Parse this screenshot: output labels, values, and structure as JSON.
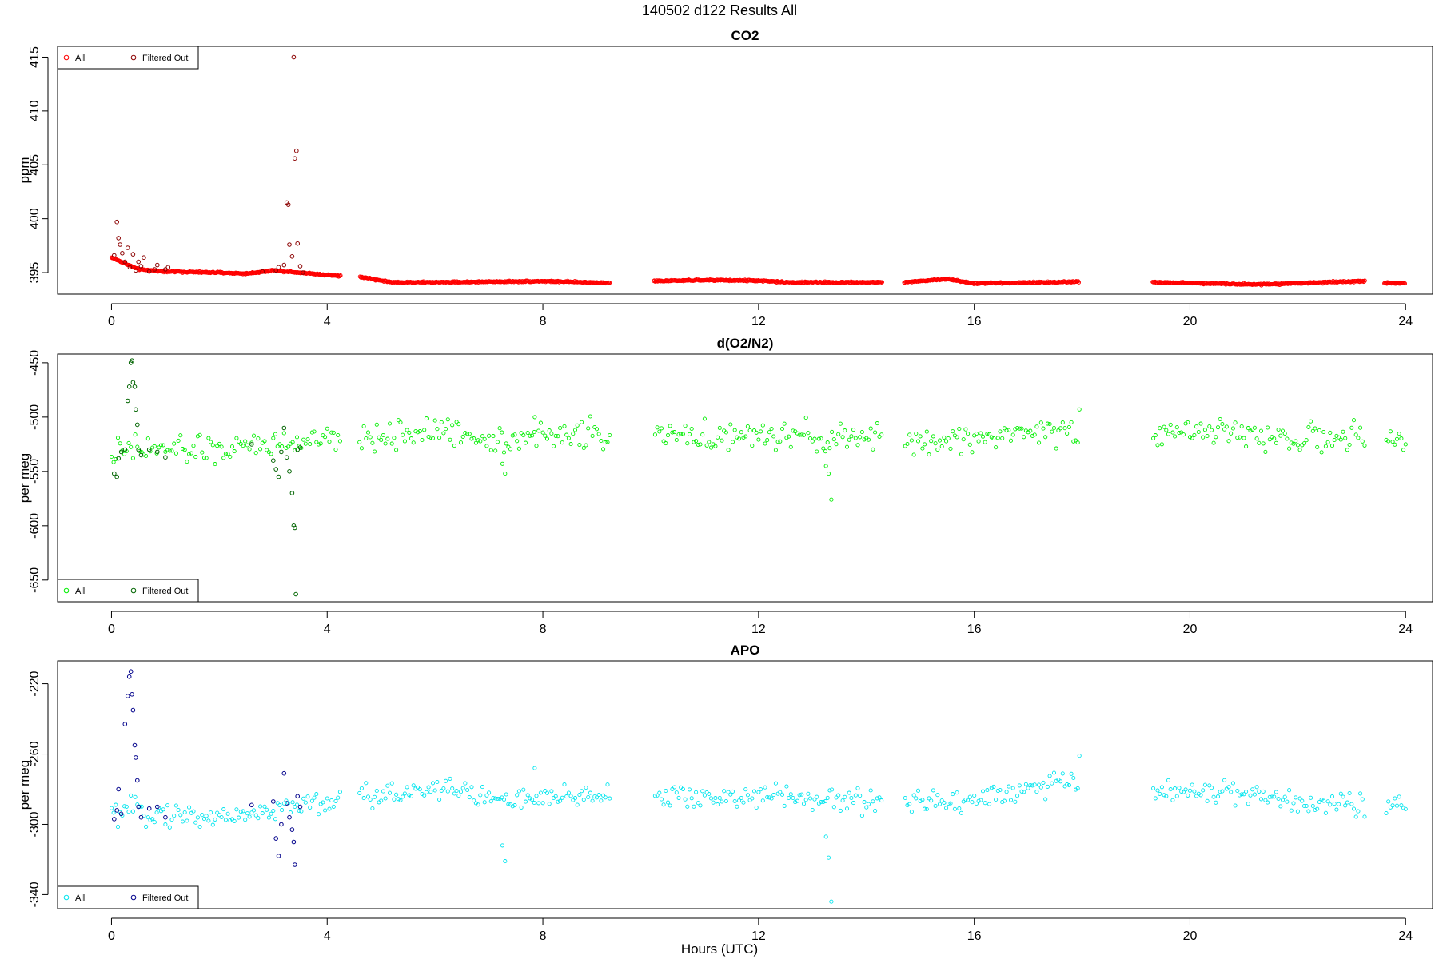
{
  "figure_title": "140502   d122   Results All",
  "colors": {
    "co2_all": "#ff0000",
    "co2_filtered": "#8b0000",
    "o2n2_all": "#00ee00",
    "o2n2_filtered": "#006400",
    "apo_all": "#00e5ee",
    "apo_filtered": "#00008b",
    "axis": "#000000"
  },
  "legend": {
    "all": "All",
    "filtered_out": "Filtered Out"
  },
  "chart_data": [
    {
      "type": "scatter",
      "id": "co2",
      "title": "CO2",
      "xlabel": "",
      "ylabel": "ppm",
      "xlim": [
        -1,
        24.5
      ],
      "ylim": [
        393.0,
        416.0
      ],
      "xticks": [
        0,
        4,
        8,
        12,
        16,
        20,
        24
      ],
      "yticks": [
        395,
        400,
        405,
        410,
        415
      ],
      "legend_position": "top-left",
      "grid": false,
      "gaps": [
        [
          4.25,
          4.6
        ],
        [
          9.25,
          10.05
        ],
        [
          14.3,
          14.7
        ],
        [
          17.95,
          19.3
        ],
        [
          23.25,
          23.6
        ],
        [
          24.0,
          24.5
        ]
      ],
      "series": [
        {
          "name": "All",
          "base": 394.15,
          "noise": 0.05,
          "dense": true,
          "anchors": [
            [
              0,
              396.4
            ],
            [
              0.5,
              395.3
            ],
            [
              1,
              395.1
            ],
            [
              2,
              395.0
            ],
            [
              2.5,
              394.9
            ],
            [
              3,
              395.2
            ],
            [
              3.5,
              395.0
            ],
            [
              4.2,
              394.7
            ],
            [
              4.6,
              394.6
            ],
            [
              5.2,
              394.1
            ],
            [
              6,
              394.1
            ],
            [
              8,
              394.2
            ],
            [
              9.2,
              394.05
            ],
            [
              10,
              394.2
            ],
            [
              11,
              394.3
            ],
            [
              12,
              394.25
            ],
            [
              12.5,
              394.1
            ],
            [
              14,
              394.1
            ],
            [
              14.7,
              394.1
            ],
            [
              15.5,
              394.4
            ],
            [
              16,
              394.0
            ],
            [
              17.9,
              394.15
            ],
            [
              19.3,
              394.1
            ],
            [
              21.3,
              393.9
            ],
            [
              23.2,
              394.2
            ],
            [
              23.6,
              394.05
            ],
            [
              24,
              394.0
            ]
          ]
        },
        {
          "name": "Filtered Out",
          "points": [
            [
              0.05,
              396.6
            ],
            [
              0.1,
              399.7
            ],
            [
              0.13,
              398.2
            ],
            [
              0.16,
              397.6
            ],
            [
              0.2,
              396.8
            ],
            [
              0.25,
              396.0
            ],
            [
              0.3,
              397.3
            ],
            [
              0.34,
              395.5
            ],
            [
              0.4,
              396.7
            ],
            [
              0.45,
              395.2
            ],
            [
              0.5,
              396.0
            ],
            [
              0.55,
              395.6
            ],
            [
              0.6,
              396.4
            ],
            [
              0.7,
              395.1
            ],
            [
              0.8,
              395.3
            ],
            [
              0.85,
              395.7
            ],
            [
              1.0,
              395.3
            ],
            [
              1.05,
              395.5
            ],
            [
              3.05,
              395.2
            ],
            [
              3.1,
              395.5
            ],
            [
              3.2,
              395.7
            ],
            [
              3.25,
              401.5
            ],
            [
              3.28,
              401.3
            ],
            [
              3.3,
              397.6
            ],
            [
              3.35,
              396.5
            ],
            [
              3.38,
              415.0
            ],
            [
              3.4,
              405.6
            ],
            [
              3.43,
              406.3
            ],
            [
              3.45,
              397.7
            ],
            [
              3.5,
              395.6
            ],
            [
              3.55,
              395.0
            ],
            [
              2.8,
              395.1
            ]
          ]
        }
      ]
    },
    {
      "type": "scatter",
      "id": "o2n2",
      "title": "d(O2/N2)",
      "xlabel": "",
      "ylabel": "per meg",
      "xlim": [
        -1,
        24.5
      ],
      "ylim": [
        -670,
        -442
      ],
      "xticks": [
        0,
        4,
        8,
        12,
        16,
        20,
        24
      ],
      "yticks": [
        -450,
        -500,
        -550,
        -600,
        -650
      ],
      "legend_position": "bottom-left",
      "grid": false,
      "gaps": [
        [
          4.25,
          4.6
        ],
        [
          9.25,
          10.05
        ],
        [
          14.3,
          14.7
        ],
        [
          17.95,
          19.3
        ],
        [
          23.25,
          23.6
        ],
        [
          24.0,
          24.5
        ]
      ],
      "series": [
        {
          "name": "All",
          "base": -520,
          "noise": 9,
          "dense": false,
          "anchors": [
            [
              0,
              -535
            ],
            [
              0.5,
              -530
            ],
            [
              2,
              -530
            ],
            [
              3,
              -525
            ],
            [
              4,
              -522
            ],
            [
              5,
              -518
            ],
            [
              6,
              -512
            ],
            [
              7,
              -520
            ],
            [
              8,
              -518
            ],
            [
              9,
              -515
            ],
            [
              10,
              -518
            ],
            [
              12,
              -518
            ],
            [
              14,
              -520
            ],
            [
              15,
              -523
            ],
            [
              16,
              -520
            ],
            [
              17,
              -513
            ],
            [
              18,
              -512
            ],
            [
              19.3,
              -515
            ],
            [
              20,
              -512
            ],
            [
              22,
              -520
            ],
            [
              23.3,
              -520
            ],
            [
              24,
              -522
            ]
          ],
          "outliers": [
            [
              7.25,
              -543
            ],
            [
              7.3,
              -552
            ],
            [
              13.25,
              -545
            ],
            [
              13.3,
              -552
            ],
            [
              13.35,
              -576
            ],
            [
              17.95,
              -493
            ],
            [
              7.85,
              -500
            ]
          ]
        },
        {
          "name": "Filtered Out",
          "points": [
            [
              0.05,
              -552
            ],
            [
              0.1,
              -555
            ],
            [
              0.13,
              -538
            ],
            [
              0.18,
              -532
            ],
            [
              0.25,
              -530
            ],
            [
              0.3,
              -485
            ],
            [
              0.33,
              -472
            ],
            [
              0.36,
              -450
            ],
            [
              0.38,
              -448
            ],
            [
              0.4,
              -468
            ],
            [
              0.43,
              -472
            ],
            [
              0.45,
              -493
            ],
            [
              0.48,
              -507
            ],
            [
              0.5,
              -530
            ],
            [
              0.55,
              -535
            ],
            [
              0.7,
              -530
            ],
            [
              0.85,
              -532
            ],
            [
              1.0,
              -537
            ],
            [
              3.0,
              -540
            ],
            [
              3.05,
              -548
            ],
            [
              3.1,
              -555
            ],
            [
              3.15,
              -532
            ],
            [
              3.2,
              -510
            ],
            [
              3.25,
              -537
            ],
            [
              3.3,
              -550
            ],
            [
              3.35,
              -570
            ],
            [
              3.38,
              -600
            ],
            [
              3.4,
              -602
            ],
            [
              3.42,
              -663
            ],
            [
              3.45,
              -530
            ],
            [
              3.5,
              -528
            ],
            [
              2.6,
              -525
            ]
          ]
        }
      ]
    },
    {
      "type": "scatter",
      "id": "apo",
      "title": "APO",
      "xlabel": "Hours (UTC)",
      "ylabel": "per meg",
      "xlim": [
        -1,
        24.5
      ],
      "ylim": [
        -348,
        -207
      ],
      "xticks": [
        0,
        4,
        8,
        12,
        16,
        20,
        24
      ],
      "yticks": [
        -220,
        -260,
        -300,
        -340
      ],
      "legend_position": "bottom-left",
      "grid": false,
      "gaps": [
        [
          4.25,
          4.6
        ],
        [
          9.25,
          10.05
        ],
        [
          14.3,
          14.7
        ],
        [
          17.95,
          19.3
        ],
        [
          23.25,
          23.6
        ],
        [
          24.0,
          24.5
        ]
      ],
      "series": [
        {
          "name": "All",
          "base": -288,
          "noise": 5,
          "dense": false,
          "anchors": [
            [
              0,
              -295
            ],
            [
              0.5,
              -292
            ],
            [
              1,
              -294
            ],
            [
              2,
              -296
            ],
            [
              3,
              -292
            ],
            [
              4,
              -287
            ],
            [
              5,
              -284
            ],
            [
              6,
              -278
            ],
            [
              7,
              -285
            ],
            [
              8,
              -287
            ],
            [
              9,
              -282
            ],
            [
              10,
              -285
            ],
            [
              12,
              -284
            ],
            [
              14,
              -287
            ],
            [
              15,
              -288
            ],
            [
              16,
              -285
            ],
            [
              17,
              -280
            ],
            [
              18,
              -275
            ],
            [
              19.3,
              -282
            ],
            [
              20,
              -280
            ],
            [
              22,
              -287
            ],
            [
              23.3,
              -287
            ],
            [
              24,
              -291
            ]
          ],
          "outliers": [
            [
              7.25,
              -312
            ],
            [
              7.3,
              -321
            ],
            [
              13.25,
              -307
            ],
            [
              13.3,
              -319
            ],
            [
              13.35,
              -344
            ],
            [
              17.95,
              -261
            ],
            [
              7.85,
              -268
            ]
          ]
        },
        {
          "name": "Filtered Out",
          "points": [
            [
              0.05,
              -297
            ],
            [
              0.1,
              -292
            ],
            [
              0.13,
              -280
            ],
            [
              0.18,
              -294
            ],
            [
              0.25,
              -243
            ],
            [
              0.3,
              -227
            ],
            [
              0.33,
              -216
            ],
            [
              0.36,
              -213
            ],
            [
              0.38,
              -226
            ],
            [
              0.4,
              -235
            ],
            [
              0.43,
              -255
            ],
            [
              0.45,
              -262
            ],
            [
              0.48,
              -275
            ],
            [
              0.5,
              -290
            ],
            [
              0.55,
              -296
            ],
            [
              0.7,
              -291
            ],
            [
              0.85,
              -290
            ],
            [
              1.0,
              -296
            ],
            [
              3.0,
              -287
            ],
            [
              3.05,
              -308
            ],
            [
              3.1,
              -318
            ],
            [
              3.15,
              -300
            ],
            [
              3.2,
              -271
            ],
            [
              3.25,
              -288
            ],
            [
              3.3,
              -296
            ],
            [
              3.35,
              -303
            ],
            [
              3.38,
              -310
            ],
            [
              3.4,
              -323
            ],
            [
              3.45,
              -284
            ],
            [
              3.5,
              -290
            ],
            [
              2.6,
              -289
            ]
          ]
        }
      ]
    }
  ]
}
